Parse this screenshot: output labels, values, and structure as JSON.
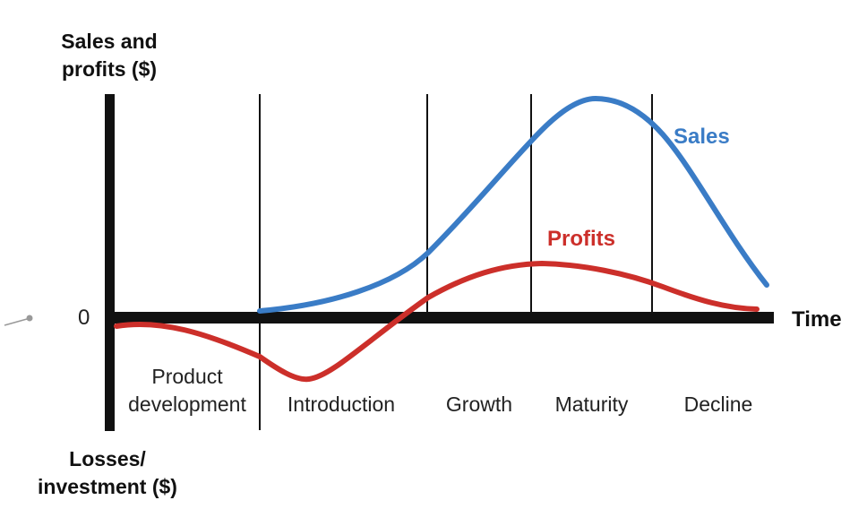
{
  "diagram": {
    "y_axis_top_label": [
      "Sales and",
      "profits ($)"
    ],
    "y_axis_bottom_label": [
      "Losses/",
      "investment ($)"
    ],
    "x_axis_label": "Time",
    "zero_label": "0",
    "stages": [
      {
        "lines": [
          "Product",
          "development"
        ]
      },
      {
        "lines": [
          "Introduction"
        ]
      },
      {
        "lines": [
          "Growth"
        ]
      },
      {
        "lines": [
          "Maturity"
        ]
      },
      {
        "lines": [
          "Decline"
        ]
      }
    ],
    "curves": [
      {
        "name": "Sales",
        "color": "#3a7cc6"
      },
      {
        "name": "Profits",
        "color": "#cc2f2a"
      }
    ],
    "axis_color": "#111111"
  }
}
